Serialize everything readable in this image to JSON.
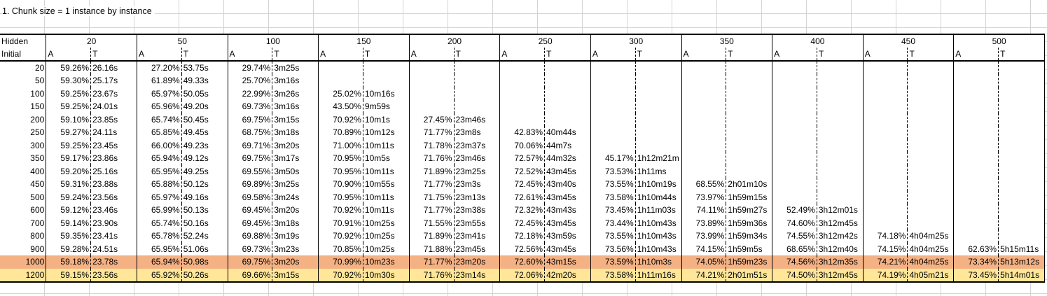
{
  "caption": "1.  Chunk size = 1  instance by instance",
  "row_header": "Hidden",
  "sub_header": "Initial",
  "hidden_sizes": [
    "20",
    "50",
    "100",
    "150",
    "200",
    "250",
    "300",
    "350",
    "400",
    "450",
    "500"
  ],
  "col_a": "A",
  "col_t": "T",
  "highlight_colors": {
    "1000": "#f4b183",
    "1200": "#ffe699"
  },
  "rows": [
    {
      "initial": "20",
      "cells": [
        [
          "59.26%",
          "26.16s"
        ],
        [
          "27.20%",
          "53.75s"
        ],
        [
          "29.74%",
          "3m25s"
        ],
        [
          "",
          ""
        ],
        [
          "",
          ""
        ],
        [
          "",
          ""
        ],
        [
          "",
          ""
        ],
        [
          "",
          ""
        ],
        [
          "",
          ""
        ],
        [
          "",
          ""
        ],
        [
          "",
          ""
        ]
      ]
    },
    {
      "initial": "50",
      "cells": [
        [
          "59.30%",
          "25.17s"
        ],
        [
          "61.89%",
          "49.33s"
        ],
        [
          "25.70%",
          "3m16s"
        ],
        [
          "",
          ""
        ],
        [
          "",
          ""
        ],
        [
          "",
          ""
        ],
        [
          "",
          ""
        ],
        [
          "",
          ""
        ],
        [
          "",
          ""
        ],
        [
          "",
          ""
        ],
        [
          "",
          ""
        ]
      ]
    },
    {
      "initial": "100",
      "cells": [
        [
          "59.25%",
          "23.67s"
        ],
        [
          "65.97%",
          "50.05s"
        ],
        [
          "22.99%",
          "3m26s"
        ],
        [
          "25.02%",
          "10m16s"
        ],
        [
          "",
          ""
        ],
        [
          "",
          ""
        ],
        [
          "",
          ""
        ],
        [
          "",
          ""
        ],
        [
          "",
          ""
        ],
        [
          "",
          ""
        ],
        [
          "",
          ""
        ]
      ]
    },
    {
      "initial": "150",
      "cells": [
        [
          "59.25%",
          "24.01s"
        ],
        [
          "65.96%",
          "49.20s"
        ],
        [
          "69.73%",
          "3m16s"
        ],
        [
          "43.50%",
          "9m59s"
        ],
        [
          "",
          ""
        ],
        [
          "",
          ""
        ],
        [
          "",
          ""
        ],
        [
          "",
          ""
        ],
        [
          "",
          ""
        ],
        [
          "",
          ""
        ],
        [
          "",
          ""
        ]
      ]
    },
    {
      "initial": "200",
      "cells": [
        [
          "59.10%",
          "23.85s"
        ],
        [
          "65.74%",
          "50.45s"
        ],
        [
          "69.75%",
          "3m15s"
        ],
        [
          "70.92%",
          "10m1s"
        ],
        [
          "27.45%",
          "23m46s"
        ],
        [
          "",
          ""
        ],
        [
          "",
          ""
        ],
        [
          "",
          ""
        ],
        [
          "",
          ""
        ],
        [
          "",
          ""
        ],
        [
          "",
          ""
        ]
      ]
    },
    {
      "initial": "250",
      "cells": [
        [
          "59.27%",
          "24.11s"
        ],
        [
          "65.85%",
          "49.45s"
        ],
        [
          "68.75%",
          "3m18s"
        ],
        [
          "70.89%",
          "10m12s"
        ],
        [
          "71.77%",
          "23m8s"
        ],
        [
          "42.83%",
          "40m44s"
        ],
        [
          "",
          ""
        ],
        [
          "",
          ""
        ],
        [
          "",
          ""
        ],
        [
          "",
          ""
        ],
        [
          "",
          ""
        ]
      ]
    },
    {
      "initial": "300",
      "cells": [
        [
          "59.25%",
          "23.45s"
        ],
        [
          "66.00%",
          "49.23s"
        ],
        [
          "69.71%",
          "3m20s"
        ],
        [
          "71.00%",
          "10m11s"
        ],
        [
          "71.78%",
          "23m37s"
        ],
        [
          "70.06%",
          "44m7s"
        ],
        [
          "",
          ""
        ],
        [
          "",
          ""
        ],
        [
          "",
          ""
        ],
        [
          "",
          ""
        ],
        [
          "",
          ""
        ]
      ]
    },
    {
      "initial": "350",
      "cells": [
        [
          "59.17%",
          "23.86s"
        ],
        [
          "65.94%",
          "49.12s"
        ],
        [
          "69.75%",
          "3m17s"
        ],
        [
          "70.95%",
          "10m5s"
        ],
        [
          "71.76%",
          "23m46s"
        ],
        [
          "72.57%",
          "44m32s"
        ],
        [
          "45.17%",
          "1h12m21m"
        ],
        [
          "",
          ""
        ],
        [
          "",
          ""
        ],
        [
          "",
          ""
        ],
        [
          "",
          ""
        ]
      ]
    },
    {
      "initial": "400",
      "cells": [
        [
          "59.20%",
          "25.16s"
        ],
        [
          "65.95%",
          "49.25s"
        ],
        [
          "69.55%",
          "3m50s"
        ],
        [
          "70.95%",
          "10m11s"
        ],
        [
          "71.89%",
          "23m25s"
        ],
        [
          "72.52%",
          "43m45s"
        ],
        [
          "73.53%",
          "1h11ms"
        ],
        [
          "",
          ""
        ],
        [
          "",
          ""
        ],
        [
          "",
          ""
        ],
        [
          "",
          ""
        ]
      ]
    },
    {
      "initial": "450",
      "cells": [
        [
          "59.31%",
          "23.88s"
        ],
        [
          "65.88%",
          "50.12s"
        ],
        [
          "69.89%",
          "3m25s"
        ],
        [
          "70.90%",
          "10m55s"
        ],
        [
          "71.77%",
          "23m3s"
        ],
        [
          "72.45%",
          "43m40s"
        ],
        [
          "73.55%",
          "1h10m19s"
        ],
        [
          "68.55%",
          "2h01m10s"
        ],
        [
          "",
          ""
        ],
        [
          "",
          ""
        ],
        [
          "",
          ""
        ]
      ]
    },
    {
      "initial": "500",
      "cells": [
        [
          "59.24%",
          "23.56s"
        ],
        [
          "65.97%",
          "49.16s"
        ],
        [
          "69.58%",
          "3m24s"
        ],
        [
          "70.95%",
          "10m11s"
        ],
        [
          "71.75%",
          "23m13s"
        ],
        [
          "72.61%",
          "43m45s"
        ],
        [
          "73.58%",
          "1h10m44s"
        ],
        [
          "73.97%",
          "1h59m15s"
        ],
        [
          "",
          ""
        ],
        [
          "",
          ""
        ],
        [
          "",
          ""
        ]
      ]
    },
    {
      "initial": "600",
      "cells": [
        [
          "59.12%",
          "23.46s"
        ],
        [
          "65.99%",
          "50.13s"
        ],
        [
          "69.45%",
          "3m20s"
        ],
        [
          "70.92%",
          "10m11s"
        ],
        [
          "71.77%",
          "23m38s"
        ],
        [
          "72.32%",
          "43m43s"
        ],
        [
          "73.45%",
          "1h11m03s"
        ],
        [
          "74.11%",
          "1h59m27s"
        ],
        [
          "52.49%",
          "3h12m01s"
        ],
        [
          "",
          ""
        ],
        [
          "",
          ""
        ]
      ]
    },
    {
      "initial": "700",
      "cells": [
        [
          "59.14%",
          "23.90s"
        ],
        [
          "65.74%",
          "50.16s"
        ],
        [
          "69.45%",
          "3m18s"
        ],
        [
          "70.91%",
          "10m25s"
        ],
        [
          "71.55%",
          "23m55s"
        ],
        [
          "72.45%",
          "43m45s"
        ],
        [
          "73.44%",
          "1h10m43s"
        ],
        [
          "73.89%",
          "1h59m36s"
        ],
        [
          "74.60%",
          "3h12m45s"
        ],
        [
          "",
          ""
        ],
        [
          "",
          ""
        ]
      ]
    },
    {
      "initial": "800",
      "cells": [
        [
          "59.35%",
          "23.41s"
        ],
        [
          "65.78%",
          "52.24s"
        ],
        [
          "69.88%",
          "3m19s"
        ],
        [
          "70.92%",
          "10m25s"
        ],
        [
          "71.89%",
          "23m41s"
        ],
        [
          "72.18%",
          "43m59s"
        ],
        [
          "73.55%",
          "1h10m43s"
        ],
        [
          "73.99%",
          "1h59m34s"
        ],
        [
          "74.55%",
          "3h12m42s"
        ],
        [
          "74.18%",
          "4h04m25s"
        ],
        [
          "",
          ""
        ]
      ]
    },
    {
      "initial": "900",
      "cells": [
        [
          "59.28%",
          "24.51s"
        ],
        [
          "65.95%",
          "51.06s"
        ],
        [
          "69.73%",
          "3m23s"
        ],
        [
          "70.85%",
          "10m25s"
        ],
        [
          "71.88%",
          "23m45s"
        ],
        [
          "72.56%",
          "43m45s"
        ],
        [
          "73.56%",
          "1h10m43s"
        ],
        [
          "74.15%",
          "1h59m5s"
        ],
        [
          "68.65%",
          "3h12m40s"
        ],
        [
          "74.15%",
          "4h04m25s"
        ],
        [
          "62.63%",
          "5h15m11s"
        ]
      ]
    },
    {
      "initial": "1000",
      "cells": [
        [
          "59.18%",
          "23.78s"
        ],
        [
          "65.94%",
          "50.98s"
        ],
        [
          "69.75%",
          "3m20s"
        ],
        [
          "70.99%",
          "10m23s"
        ],
        [
          "71.77%",
          "23m20s"
        ],
        [
          "72.60%",
          "43m15s"
        ],
        [
          "73.59%",
          "1h10m3s"
        ],
        [
          "74.05%",
          "1h59m23s"
        ],
        [
          "74.56%",
          "3h12m35s"
        ],
        [
          "74.21%",
          "4h04m25s"
        ],
        [
          "73.34%",
          "5h13m12s"
        ]
      ]
    },
    {
      "initial": "1200",
      "cells": [
        [
          "59.15%",
          "23.56s"
        ],
        [
          "65.92%",
          "50.26s"
        ],
        [
          "69.66%",
          "3m15s"
        ],
        [
          "70.92%",
          "10m30s"
        ],
        [
          "71.76%",
          "23m14s"
        ],
        [
          "72.06%",
          "42m20s"
        ],
        [
          "73.58%",
          "1h11m16s"
        ],
        [
          "74.21%",
          "2h01m51s"
        ],
        [
          "74.50%",
          "3h12m45s"
        ],
        [
          "74.19%",
          "4h05m21s"
        ],
        [
          "73.45%",
          "5h14m01s"
        ]
      ]
    }
  ]
}
